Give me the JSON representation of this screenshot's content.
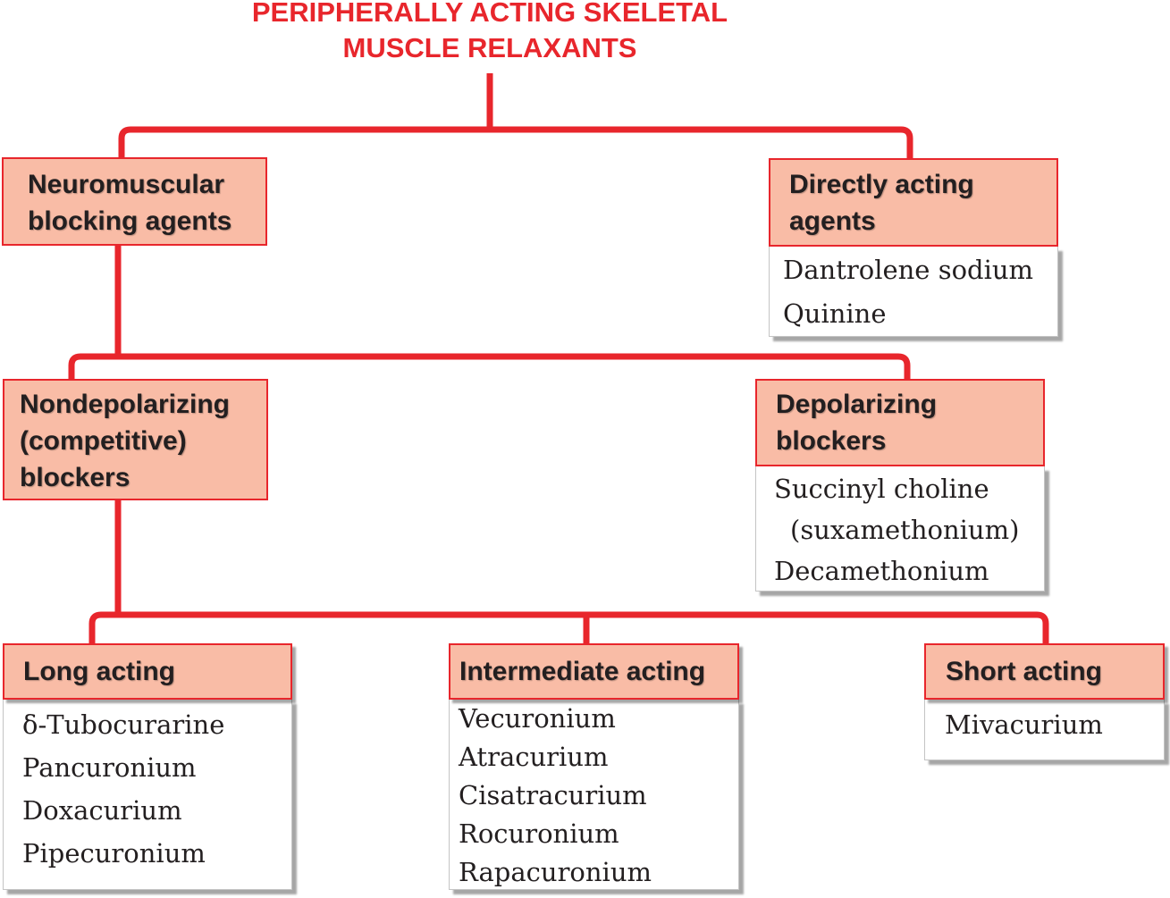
{
  "title": {
    "line1": "PERIPHERALLY ACTING SKELETAL",
    "line2": "MUSCLE RELAXANTS"
  },
  "colors": {
    "accent": "#e8262c",
    "box_fill": "#f9bca6",
    "text": "#231f20"
  },
  "neuromuscular": {
    "heading": [
      "Neuromuscular",
      "blocking agents"
    ]
  },
  "direct": {
    "heading": [
      "Directly acting",
      "agents"
    ],
    "items": [
      "Dantrolene sodium",
      "Quinine"
    ]
  },
  "nondepolarizing": {
    "heading": [
      "Nondepolarizing",
      "(competitive)",
      "blockers"
    ]
  },
  "depolarizing": {
    "heading": [
      "Depolarizing",
      "blockers"
    ],
    "items": [
      "Succinyl choline",
      "(suxamethonium)",
      "Decamethonium"
    ]
  },
  "long_acting": {
    "heading": "Long acting",
    "items": [
      "δ-Tubocurarine",
      "Pancuronium",
      "Doxacurium",
      "Pipecuronium"
    ]
  },
  "intermediate_acting": {
    "heading": "Intermediate acting",
    "items": [
      "Vecuronium",
      "Atracurium",
      "Cisatracurium",
      "Rocuronium",
      "Rapacuronium"
    ]
  },
  "short_acting": {
    "heading": "Short acting",
    "items": [
      "Mivacurium"
    ]
  }
}
